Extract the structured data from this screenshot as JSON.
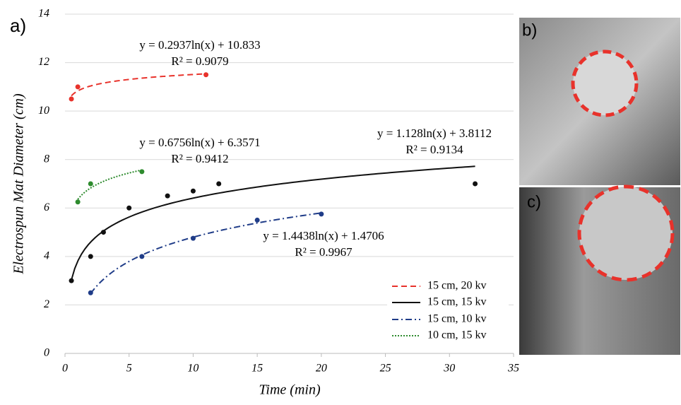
{
  "chart_data": {
    "type": "scatter",
    "panel_label": "a)",
    "xlabel": "Time (min)",
    "ylabel": "Electrospun Mat Diameter  (cm)",
    "xlim": [
      0,
      35
    ],
    "xticks": [
      0,
      5,
      10,
      15,
      20,
      25,
      30,
      35
    ],
    "ylim": [
      0,
      14
    ],
    "yticks": [
      0,
      2,
      4,
      6,
      8,
      10,
      12,
      14
    ],
    "grid": true,
    "legend": "lower right",
    "series": [
      {
        "name": "15 cm, 20 kv",
        "color": "#e8322b",
        "dash": "8 5",
        "x": [
          0.5,
          1,
          11
        ],
        "values": [
          10.5,
          11,
          11.5
        ],
        "trendline": {
          "equation": "y = 0.2937ln(x) + 10.833",
          "r2_label": "R² = 0.9079",
          "a": 0.2937,
          "b": 10.833
        }
      },
      {
        "name": "15 cm, 15 kv",
        "color": "#111111",
        "dash": "none",
        "x": [
          0.5,
          2,
          3,
          5,
          8,
          10,
          12,
          32
        ],
        "values": [
          3,
          4,
          5,
          6,
          6.5,
          6.7,
          7,
          7
        ],
        "trendline": {
          "equation": "y = 1.128ln(x) + 3.8112",
          "r2_label": "R² = 0.9134",
          "a": 1.128,
          "b": 3.8112
        }
      },
      {
        "name": "15 cm, 10 kv",
        "color": "#1f3c88",
        "dash": "9 4 2 4",
        "x": [
          2,
          6,
          10,
          15,
          20
        ],
        "values": [
          2.5,
          4,
          4.75,
          5.5,
          5.75
        ],
        "trendline": {
          "equation": "y = 1.4438ln(x) + 1.4706",
          "r2_label": "R² = 0.9967",
          "a": 1.4438,
          "b": 1.4706
        }
      },
      {
        "name": "10 cm, 15 kv",
        "color": "#2e8b2e",
        "dash": "2 2",
        "x": [
          1,
          2,
          6
        ],
        "values": [
          6.25,
          7,
          7.5
        ],
        "trendline": {
          "equation": "y = 0.6756ln(x) + 6.3571",
          "r2_label": "R² = 0.9412",
          "a": 0.6756,
          "b": 6.3571
        }
      }
    ]
  },
  "photos": [
    {
      "label": "b)"
    },
    {
      "label": "c)"
    }
  ]
}
